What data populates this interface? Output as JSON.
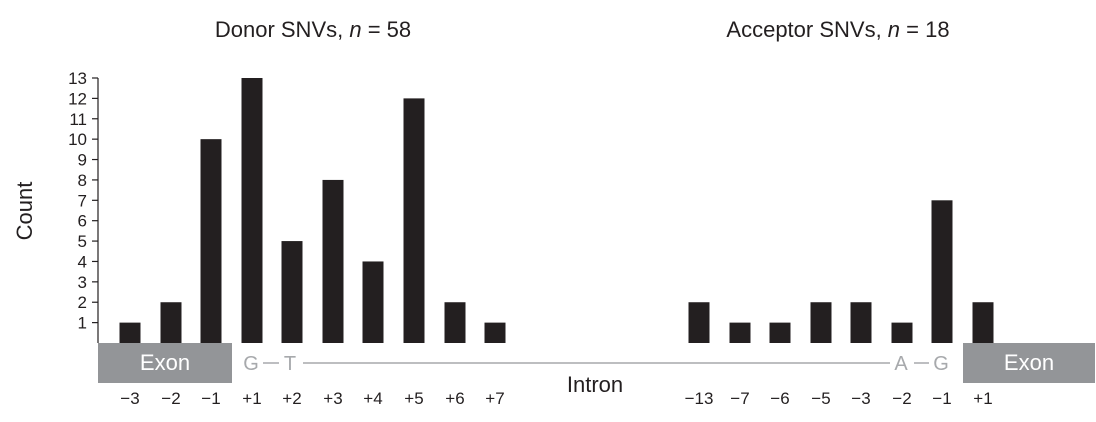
{
  "chart_data": {
    "type": "bar",
    "ylabel": "Count",
    "ylim": [
      0,
      13
    ],
    "yticks": [
      1,
      2,
      3,
      4,
      5,
      6,
      7,
      8,
      9,
      10,
      11,
      12,
      13
    ],
    "bar_color": "#231f20",
    "exon_color": "#939598",
    "panels": [
      {
        "title_prefix": "Donor SNVs, ",
        "title_italic": "n",
        "title_suffix": " = 58",
        "categories": [
          "−3",
          "−2",
          "−1",
          "+1",
          "+2",
          "+3",
          "+4",
          "+5",
          "+6",
          "+7"
        ],
        "values": [
          1,
          2,
          10,
          13,
          5,
          8,
          4,
          12,
          2,
          1
        ]
      },
      {
        "title_prefix": "Acceptor SNVs, ",
        "title_italic": "n",
        "title_suffix": " = 18",
        "categories": [
          "−13",
          "−7",
          "−6",
          "−5",
          "−3",
          "−2",
          "−1",
          "+1"
        ],
        "values": [
          2,
          1,
          1,
          2,
          2,
          1,
          7,
          2
        ]
      }
    ],
    "gene_model": {
      "left_exon": "Exon",
      "right_exon": "Exon",
      "intron": "Intron",
      "donor_nucleotides": [
        "G",
        "T"
      ],
      "acceptor_nucleotides": [
        "A",
        "G"
      ]
    }
  }
}
